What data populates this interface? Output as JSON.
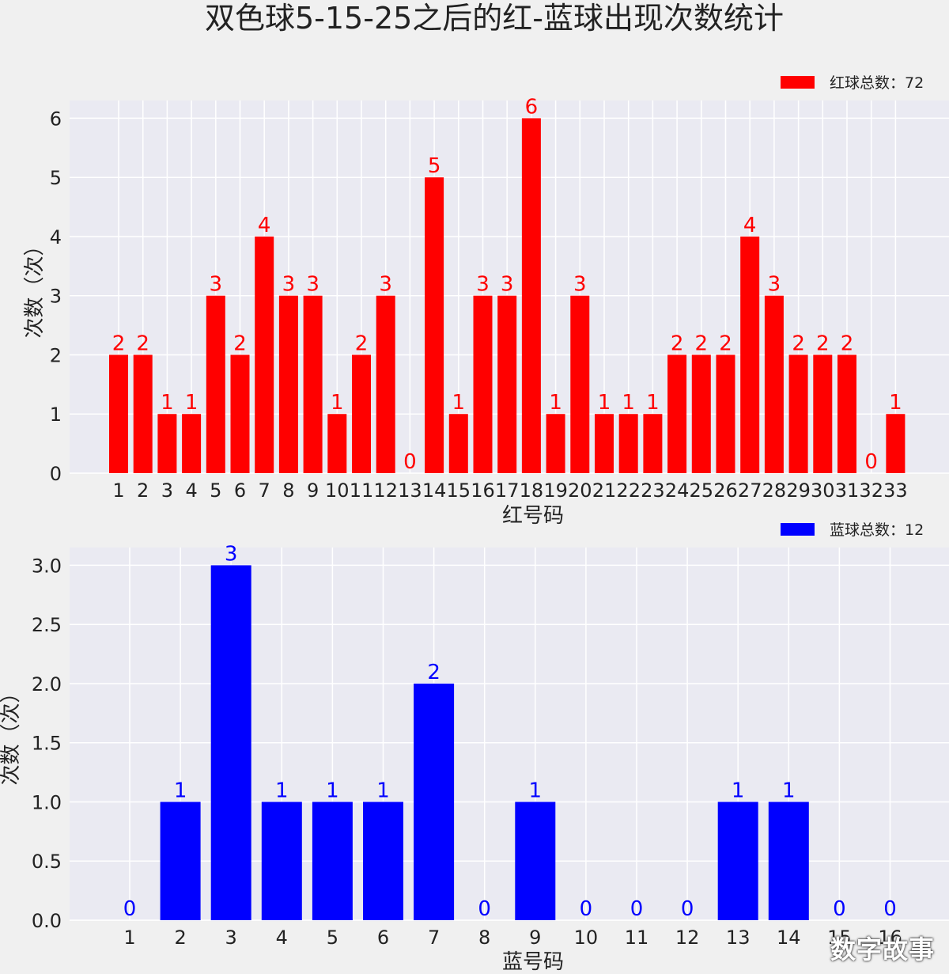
{
  "title": "双色球5-15-25之后的红-蓝球出现次数统计",
  "watermark": "数字故事",
  "chart_data": [
    {
      "type": "bar",
      "xlabel": "红号码",
      "ylabel": "次数（次）",
      "legend": "红球总数：72",
      "legend_position": "top-right",
      "color": "#ff0000",
      "grid": true,
      "ylim": [
        0,
        6.3
      ],
      "yticks": [
        "0",
        "1",
        "2",
        "3",
        "4",
        "5",
        "6"
      ],
      "categories": [
        "1",
        "2",
        "3",
        "4",
        "5",
        "6",
        "7",
        "8",
        "9",
        "10",
        "11",
        "12",
        "13",
        "14",
        "15",
        "16",
        "17",
        "18",
        "19",
        "20",
        "21",
        "22",
        "23",
        "24",
        "25",
        "26",
        "27",
        "28",
        "29",
        "30",
        "31",
        "32",
        "33"
      ],
      "values": [
        2,
        2,
        1,
        1,
        3,
        2,
        4,
        3,
        3,
        1,
        2,
        3,
        0,
        5,
        1,
        3,
        3,
        6,
        1,
        3,
        1,
        1,
        1,
        2,
        2,
        2,
        4,
        3,
        2,
        2,
        2,
        0,
        1
      ]
    },
    {
      "type": "bar",
      "xlabel": "蓝号码",
      "ylabel": "次数（次）",
      "legend": "蓝球总数：12",
      "legend_position": "top-right",
      "color": "#0000ff",
      "grid": true,
      "ylim": [
        0,
        3.15
      ],
      "yticks": [
        "0.0",
        "0.5",
        "1.0",
        "1.5",
        "2.0",
        "2.5",
        "3.0"
      ],
      "categories": [
        "1",
        "2",
        "3",
        "4",
        "5",
        "6",
        "7",
        "8",
        "9",
        "10",
        "11",
        "12",
        "13",
        "14",
        "15",
        "16"
      ],
      "values": [
        0,
        1,
        3,
        1,
        1,
        1,
        2,
        0,
        1,
        0,
        0,
        0,
        1,
        1,
        0,
        0
      ]
    }
  ]
}
